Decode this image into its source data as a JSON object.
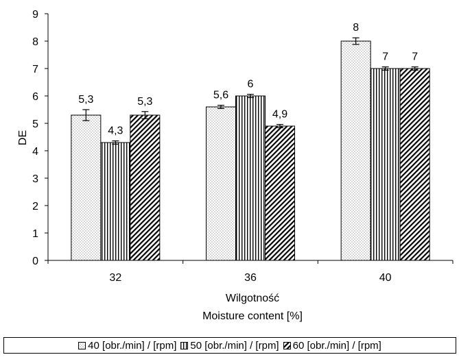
{
  "chart_data": {
    "type": "bar",
    "categories": [
      "32",
      "36",
      "40"
    ],
    "series": [
      {
        "name": "40 [obr./min] / [rpm]",
        "values": [
          5.3,
          5.6,
          8
        ],
        "errors": [
          0.2,
          0.06,
          0.12
        ],
        "labels": [
          "5,3",
          "5,6",
          "8"
        ],
        "pattern": "dots"
      },
      {
        "name": "50 [obr./min] / [rpm]",
        "values": [
          4.3,
          6,
          7
        ],
        "errors": [
          0.06,
          0.06,
          0.06
        ],
        "labels": [
          "4,3",
          "6",
          "7"
        ],
        "pattern": "vertical"
      },
      {
        "name": "60 [obr./min] / [rpm]",
        "values": [
          5.3,
          4.9,
          7
        ],
        "errors": [
          0.13,
          0.06,
          0.06
        ],
        "labels": [
          "5,3",
          "4,9",
          "7"
        ],
        "pattern": "diagonal"
      }
    ],
    "xlabel": [
      "Wilgotność",
      "Moisture content [%]"
    ],
    "ylabel": "DE",
    "ylim": [
      0,
      9
    ],
    "yticks": [
      0,
      1,
      2,
      3,
      4,
      5,
      6,
      7,
      8,
      9
    ],
    "grid": false,
    "legend_position": "bottom"
  }
}
